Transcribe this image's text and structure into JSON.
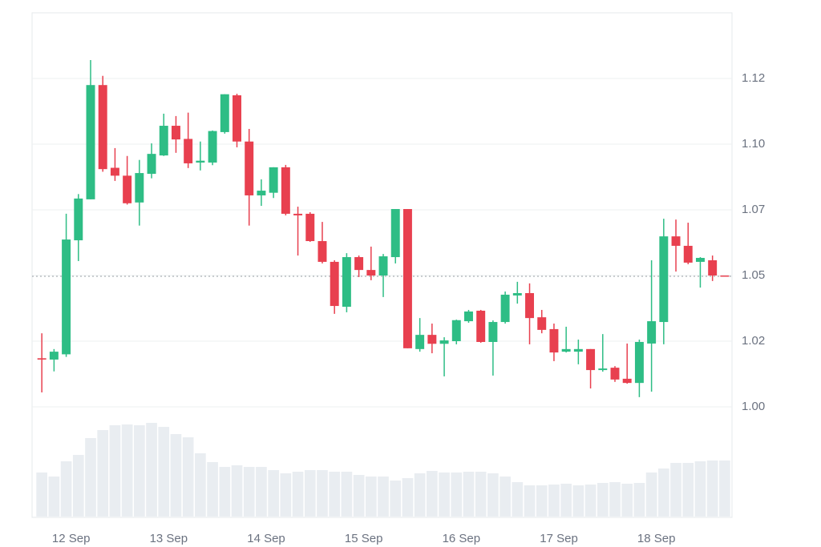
{
  "chart_data": {
    "type": "candlestick",
    "open": [
      1.0185,
      1.018,
      1.02,
      1.0634,
      1.079,
      1.1225,
      1.091,
      1.088,
      1.0778,
      1.0887,
      1.0957,
      1.107,
      1.102,
      1.093,
      1.093,
      1.1046,
      1.1186,
      1.101,
      1.0805,
      1.0815,
      1.0912,
      1.0735,
      1.0735,
      1.0631,
      1.0552,
      1.0381,
      1.057,
      1.0521,
      1.05,
      1.057,
      1.0753,
      1.022,
      1.0274,
      1.024,
      1.025,
      1.0326,
      1.0366,
      1.0247,
      1.0323,
      1.0424,
      1.0433,
      1.0341,
      1.0296,
      1.021,
      1.021,
      1.022,
      1.014,
      1.0149,
      1.0107,
      1.0091,
      1.0241,
      1.0323,
      1.0649,
      1.0613,
      1.0552,
      1.0558,
      1.05
    ],
    "high": [
      1.028,
      1.022,
      1.0735,
      1.081,
      1.132,
      1.126,
      1.0985,
      1.0955,
      1.094,
      1.1003,
      1.1116,
      1.1107,
      1.112,
      1.101,
      1.1052,
      1.119,
      1.1192,
      1.1058,
      1.0866,
      1.0912,
      1.0921,
      1.0762,
      1.0741,
      1.0704,
      1.0558,
      1.0585,
      1.0576,
      1.061,
      1.0582,
      1.0753,
      1.0753,
      1.0338,
      1.0317,
      1.0265,
      1.0332,
      1.0369,
      1.0369,
      1.0329,
      1.0439,
      1.0476,
      1.047,
      1.0369,
      1.0317,
      1.0305,
      1.0256,
      1.022,
      1.0277,
      1.0155,
      1.0241,
      1.0256,
      1.0558,
      1.0716,
      1.0713,
      1.0701,
      1.057,
      1.0576,
      1.05
    ],
    "low": [
      1.0055,
      1.0135,
      1.019,
      1.0555,
      1.079,
      1.0895,
      1.086,
      1.077,
      1.069,
      1.087,
      1.0955,
      1.0967,
      1.0909,
      1.09,
      1.092,
      1.104,
      1.0988,
      1.069,
      1.0765,
      1.0795,
      1.0729,
      1.0576,
      1.0628,
      1.0546,
      1.0354,
      1.036,
      1.0494,
      1.0482,
      1.0418,
      1.0546,
      1.0223,
      1.021,
      1.0204,
      1.0116,
      1.0238,
      1.032,
      1.0244,
      1.0119,
      1.0317,
      1.0393,
      1.0238,
      1.028,
      1.0174,
      1.0207,
      1.0162,
      1.007,
      1.0134,
      1.0095,
      1.0088,
      1.0037,
      1.0058,
      1.0238,
      1.0515,
      1.0543,
      1.0454,
      1.0479,
      1.0497
    ],
    "close": [
      1.018,
      1.021,
      1.0637,
      1.0793,
      1.1225,
      1.0905,
      1.088,
      1.0775,
      1.089,
      1.0963,
      1.107,
      1.1018,
      1.0927,
      1.0937,
      1.105,
      1.119,
      1.101,
      1.0805,
      1.0823,
      1.0912,
      1.0735,
      1.0729,
      1.0631,
      1.0552,
      1.0384,
      1.057,
      1.0521,
      1.05,
      1.0573,
      1.0753,
      1.0223,
      1.0274,
      1.024,
      1.0253,
      1.033,
      1.0363,
      1.0247,
      1.0323,
      1.0427,
      1.0433,
      1.0338,
      1.0293,
      1.0207,
      1.022,
      1.022,
      1.014,
      1.0146,
      1.0104,
      1.0091,
      1.0247,
      1.0326,
      1.0649,
      1.0613,
      1.0549,
      1.0567,
      1.05,
      1.0497
    ],
    "volume": [
      55,
      50,
      69,
      77,
      98,
      108,
      114,
      115,
      114,
      117,
      112,
      103,
      99,
      79,
      68,
      62,
      64,
      62,
      62,
      58,
      54,
      56,
      58,
      58,
      56,
      56,
      52,
      50,
      50,
      45,
      48,
      54,
      57,
      55,
      55,
      56,
      56,
      54,
      50,
      43,
      39,
      39,
      40,
      41,
      39,
      40,
      42,
      43,
      41,
      42,
      55,
      60,
      67,
      67,
      69,
      70,
      70
    ],
    "up_color": "#2ebd85",
    "down_color": "#e8404f",
    "volume_color": "#e9edf1",
    "ylim": [
      1.0,
      1.15
    ],
    "yticks": [
      {
        "value": 1.0,
        "label": "1.00"
      },
      {
        "value": 1.025,
        "label": "1.02"
      },
      1.05,
      {
        "value": 1.075,
        "label": "1.07"
      },
      {
        "value": 1.1,
        "label": "1.10"
      },
      {
        "value": 1.125,
        "label": "1.12"
      }
    ],
    "volume_ylim": [
      0,
      135
    ],
    "xlim": [
      -0.8,
      56.6
    ],
    "xticks": [
      {
        "value": 2.4,
        "label": "12 Sep"
      },
      {
        "value": 10.4,
        "label": "13 Sep"
      },
      {
        "value": 18.4,
        "label": "14 Sep"
      },
      {
        "value": 26.4,
        "label": "15 Sep"
      },
      {
        "value": 34.4,
        "label": "16 Sep"
      },
      {
        "value": 42.4,
        "label": "17 Sep"
      },
      {
        "value": 50.4,
        "label": "18 Sep"
      }
    ],
    "grid": true
  }
}
